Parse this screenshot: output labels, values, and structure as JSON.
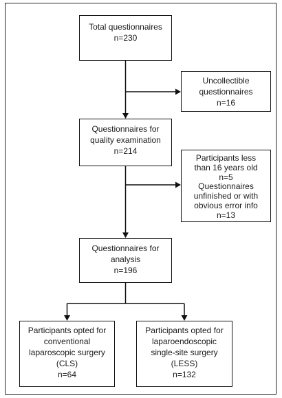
{
  "flowchart": {
    "total": {
      "lines": [
        "Total questionnaires",
        "n=230"
      ]
    },
    "uncollectible": {
      "lines": [
        "Uncollectible",
        "questionnaires",
        "n=16"
      ]
    },
    "quality_examination": {
      "lines": [
        "Questionnaires for",
        "quality examination",
        "n=214"
      ]
    },
    "excluded": {
      "lines": [
        "Participants less",
        "than 16 years old",
        "n=5",
        "Questionnaires",
        "unfinished or with",
        "obvious error info",
        "n=13"
      ]
    },
    "analysis": {
      "lines": [
        "Questionnaires for",
        "analysis",
        "n=196"
      ]
    },
    "cls": {
      "lines": [
        "Participants opted for",
        "conventional",
        "laparoscopic surgery",
        "(CLS)",
        "n=64"
      ]
    },
    "less": {
      "lines": [
        "Participants opted for",
        "laparoendoscopic",
        "single-site surgery",
        "(LESS)",
        "n=132"
      ]
    }
  }
}
